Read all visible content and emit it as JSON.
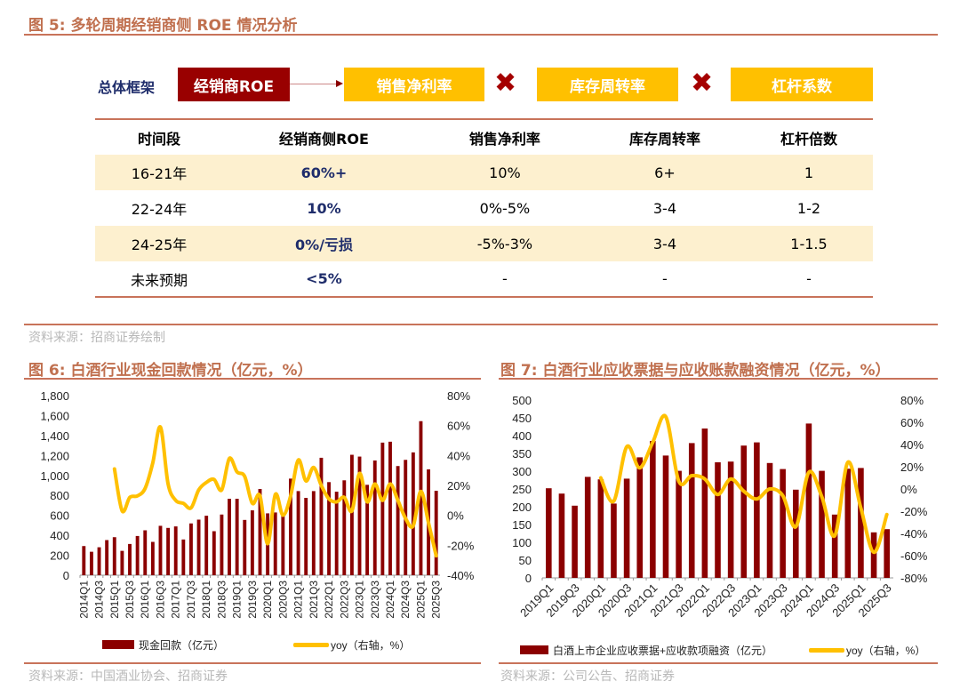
{
  "fig5": {
    "title": "图 5:  多轮周期经销商侧 ROE 情况分析",
    "framework": {
      "label": "总体框架",
      "roe": "经销商ROE",
      "factors": [
        "销售净利率",
        "库存周转率",
        "杠杆系数"
      ]
    },
    "table": {
      "headers": [
        "时间段",
        "经销商侧ROE",
        "销售净利率",
        "库存周转率",
        "杠杆倍数"
      ],
      "rows": [
        [
          "16-21年",
          "60%+",
          "10%",
          "6+",
          "1"
        ],
        [
          "22-24年",
          "10%",
          "0%-5%",
          "3-4",
          "1-2"
        ],
        [
          "24-25年",
          "0%/亏损",
          "-5%-3%",
          "3-4",
          "1-1.5"
        ],
        [
          "未来预期",
          "<5%",
          "-",
          "-",
          "-"
        ]
      ]
    },
    "source": "资料来源：招商证券绘制"
  },
  "fig6": {
    "title": "图 6:  白酒行业现金回款情况（亿元，%）",
    "source": "资料来源：中国酒业协会、招商证券"
  },
  "fig7": {
    "title": "图 7: 白酒行业应收票据与应收账款融资情况（亿元，%）",
    "source": "资料来源：公司公告、招商证券"
  },
  "colors": {
    "bar": "#8b0000",
    "line": "#ffc000",
    "accent": "#c8735a",
    "roe_box": "#990000"
  },
  "chart_data": [
    {
      "type": "bar",
      "categories": [
        "2014Q1",
        "2014Q2",
        "2014Q3",
        "2014Q4",
        "2015Q1",
        "2015Q2",
        "2015Q3",
        "2015Q4",
        "2016Q1",
        "2016Q2",
        "2016Q3",
        "2016Q4",
        "2017Q1",
        "2017Q2",
        "2017Q3",
        "2017Q4",
        "2018Q1",
        "2018Q2",
        "2018Q3",
        "2018Q4",
        "2019Q1",
        "2019Q2",
        "2019Q3",
        "2019Q4",
        "2020Q1",
        "2020Q2",
        "2020Q3",
        "2020Q4",
        "2021Q1",
        "2021Q2",
        "2021Q3",
        "2021Q4",
        "2022Q1",
        "2022Q2",
        "2022Q3",
        "2022Q4",
        "2023Q1",
        "2023Q2",
        "2023Q3",
        "2023Q4",
        "2024Q1",
        "2024Q2",
        "2024Q3",
        "2024Q4",
        "2025Q1",
        "2025Q2",
        "2025Q3"
      ],
      "series": [
        {
          "name": "现金回款（亿元）",
          "type": "bar",
          "axis": "left",
          "values": [
            292,
            235,
            280,
            352,
            381,
            244,
            313,
            393,
            450,
            334,
            495,
            474,
            489,
            358,
            519,
            557,
            596,
            441,
            608,
            766,
            766,
            554,
            650,
            864,
            620,
            629,
            600,
            968,
            843,
            775,
            843,
            1177,
            933,
            837,
            951,
            1207,
            1189,
            906,
            1150,
            1329,
            1338,
            1094,
            1156,
            1231,
            1544,
            1061,
            846
          ]
        },
        {
          "name": "yoy（右轴，%）",
          "type": "line",
          "axis": "right",
          "values": [
            null,
            null,
            null,
            null,
            31,
            3,
            12,
            13,
            18,
            35,
            59,
            21,
            10,
            8,
            5,
            17,
            22,
            24,
            17,
            38,
            29,
            26,
            8,
            13,
            -19,
            14,
            0,
            13,
            37,
            23,
            32,
            20,
            11,
            9,
            12,
            3,
            28,
            9,
            21,
            10,
            21,
            10,
            -2,
            -7,
            16,
            -5,
            -27
          ]
        }
      ],
      "left_ticks": [
        "0",
        "200",
        "400",
        "600",
        "800",
        "1,000",
        "1,200",
        "1,400",
        "1,600",
        "1,800"
      ],
      "right_ticks": [
        "-40%",
        "-20%",
        "0%",
        "20%",
        "40%",
        "60%",
        "80%"
      ],
      "ylim": [
        0,
        1800
      ],
      "y2lim": [
        -40,
        80
      ],
      "legend": [
        "现金回款（亿元）",
        "yoy（右轴，%）"
      ],
      "legend_position": "bottom"
    },
    {
      "type": "bar",
      "categories": [
        "2019Q1",
        "2019Q2",
        "2019Q3",
        "2019Q4",
        "2020Q1",
        "2020Q2",
        "2020Q3",
        "2020Q4",
        "2021Q1",
        "2021Q2",
        "2021Q3",
        "2021Q4",
        "2022Q1",
        "2022Q2",
        "2022Q3",
        "2022Q4",
        "2023Q1",
        "2023Q2",
        "2023Q3",
        "2023Q4",
        "2024Q1",
        "2024Q2",
        "2024Q3",
        "2024Q4",
        "2025Q1",
        "2025Q2",
        "2025Q3"
      ],
      "series": [
        {
          "name": "白酒上市企业应收票据+应收款项融资（亿元）",
          "type": "bar",
          "axis": "left",
          "values": [
            252,
            237,
            203,
            284,
            277,
            209,
            279,
            339,
            385,
            344,
            301,
            379,
            420,
            325,
            327,
            372,
            381,
            323,
            306,
            248,
            434,
            301,
            178,
            307,
            309,
            128,
            137
          ]
        },
        {
          "name": "yoy（右轴，%）",
          "type": "line",
          "axis": "right",
          "values": [
            null,
            null,
            null,
            null,
            10,
            -11,
            38,
            19,
            42,
            65,
            7,
            12,
            9,
            -5,
            9,
            -2,
            -9,
            0,
            -6,
            -34,
            15,
            -7,
            -42,
            24,
            -17,
            -57,
            -23
          ]
        }
      ],
      "left_ticks": [
        "0",
        "50",
        "100",
        "150",
        "200",
        "250",
        "300",
        "350",
        "400",
        "450",
        "500"
      ],
      "right_ticks": [
        "-80%",
        "-60%",
        "-40%",
        "-20%",
        "0%",
        "20%",
        "40%",
        "60%",
        "80%"
      ],
      "ylim": [
        0,
        500
      ],
      "y2lim": [
        -80,
        80
      ],
      "legend": [
        "白酒上市企业应收票据+应收款项融资（亿元）",
        "yoy（右轴，%）"
      ],
      "legend_position": "bottom"
    }
  ]
}
